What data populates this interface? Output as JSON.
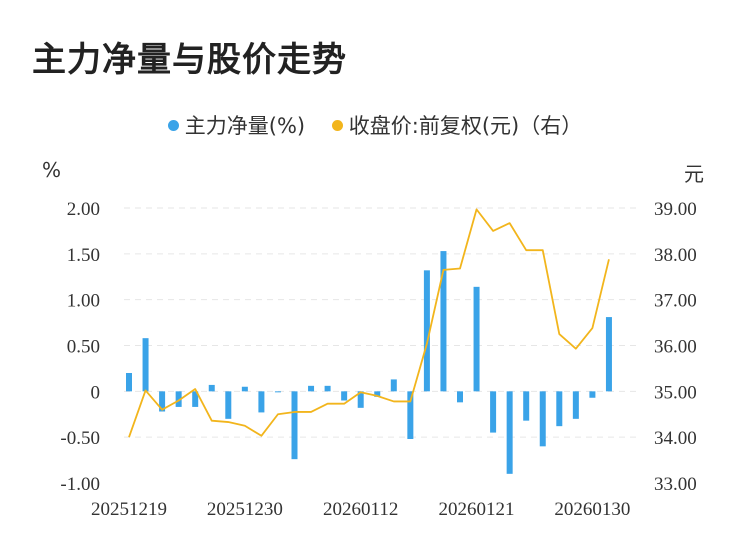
{
  "title": "主力净量与股价走势",
  "colors": {
    "bar": "#3aa3e8",
    "line": "#f2b51c",
    "grid": "#e6e6e6",
    "text": "#333333"
  },
  "units": {
    "left": "%",
    "right": "元"
  },
  "chart_data": {
    "type": "bar",
    "series": [
      {
        "name": "主力净量(%)",
        "type": "bar",
        "axis": "left",
        "values": [
          0.2,
          0.58,
          -0.22,
          -0.17,
          -0.17,
          0.07,
          -0.3,
          0.05,
          -0.23,
          0.0,
          -0.74,
          0.06,
          0.06,
          -0.1,
          -0.18,
          -0.06,
          0.13,
          -0.52,
          1.32,
          1.53,
          -0.12,
          1.14,
          -0.45,
          -0.9,
          -0.32,
          -0.6,
          -0.38,
          -0.3,
          -0.07,
          0.81
        ]
      },
      {
        "name": "收盘价:前复权(元)（右）",
        "type": "line",
        "axis": "right",
        "values": [
          34.0,
          35.02,
          34.6,
          34.8,
          35.05,
          34.36,
          34.33,
          34.25,
          34.03,
          34.5,
          34.55,
          34.55,
          34.73,
          34.73,
          34.98,
          34.9,
          34.78,
          34.78,
          36.04,
          37.65,
          37.68,
          38.97,
          38.5,
          38.67,
          38.08,
          38.08,
          36.25,
          35.93,
          36.38,
          37.88
        ]
      }
    ],
    "x_tick_labels": [
      "20251219",
      "20251230",
      "20260112",
      "20260121",
      "20260130"
    ],
    "x_tick_indices": [
      0,
      7,
      14,
      21,
      28
    ],
    "y_left": {
      "ticks": [
        "2.00",
        "1.50",
        "1.00",
        "0.50",
        "0",
        "-0.50",
        "-1.00"
      ],
      "range": [
        -1.0,
        2.0
      ]
    },
    "y_right": {
      "ticks": [
        "39.00",
        "38.00",
        "37.00",
        "36.00",
        "35.00",
        "34.00",
        "33.00"
      ],
      "range": [
        33.0,
        39.0
      ]
    },
    "grid": true,
    "legend_position": "top-center"
  }
}
